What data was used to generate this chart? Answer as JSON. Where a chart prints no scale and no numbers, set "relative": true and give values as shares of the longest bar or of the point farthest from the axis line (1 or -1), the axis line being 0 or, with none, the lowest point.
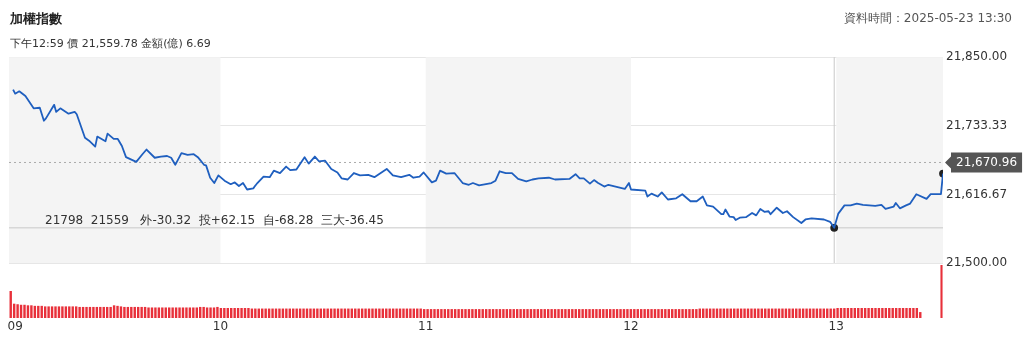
{
  "chart_data": [
    {
      "type": "line",
      "title": "加權指數",
      "subtitle": "下午12:59  價 21,559.78  金額(億) 6.69",
      "annotations": [
        "資料時間：2025-05-23 13:30",
        "21798  21559   外-30.32  投+62.15  自-68.28  三大-36.45"
      ],
      "xlim": [
        8.97,
        13.52
      ],
      "xticks": [
        {
          "value": 9,
          "label": "09"
        },
        {
          "value": 10,
          "label": "10"
        },
        {
          "value": 11,
          "label": "11"
        },
        {
          "value": 12,
          "label": "12"
        },
        {
          "value": 13,
          "label": "13"
        }
      ],
      "ylim": [
        21500,
        21850
      ],
      "yticks": [
        {
          "value": 21500,
          "label": "21,500.00"
        },
        {
          "value": 21616.67,
          "label": "21,616.67"
        },
        {
          "value": 21733.33,
          "label": "21,733.33"
        },
        {
          "value": 21850,
          "label": "21,850.00"
        }
      ],
      "grid": "y",
      "legend": false,
      "bands": [
        {
          "axis": "x",
          "from": 8.97,
          "to": 10,
          "color": "#f4f4f4"
        },
        {
          "axis": "x",
          "from": 11,
          "to": 12,
          "color": "#f4f4f4"
        },
        {
          "axis": "x",
          "from": 13,
          "to": 13.52,
          "color": "#f4f4f4"
        }
      ],
      "ref_lines": [
        {
          "axis": "y",
          "value": 21670.96,
          "label": "21,670.96",
          "line_style": "dotted",
          "color": "#aaaaaa"
        },
        {
          "axis": "x",
          "value": 12.99,
          "color": "#c8c8c8"
        },
        {
          "axis": "y",
          "value": 21559.78,
          "color": "#c8c8c8"
        }
      ],
      "series": [
        {
          "type": "line",
          "color": "#1f5fbf",
          "marker": "none",
          "x": [
            8.99,
            9.0,
            9.02,
            9.05,
            9.09,
            9.12,
            9.14,
            9.15,
            9.19,
            9.2,
            9.22,
            9.26,
            9.29,
            9.3,
            9.34,
            9.36,
            9.39,
            9.4,
            9.44,
            9.45,
            9.48,
            9.5,
            9.52,
            9.54,
            9.59,
            9.62,
            9.64,
            9.68,
            9.71,
            9.74,
            9.76,
            9.78,
            9.81,
            9.84,
            9.87,
            9.89,
            9.92,
            9.93,
            9.95,
            9.97,
            9.99,
            10.02,
            10.05,
            10.07,
            10.09,
            10.11,
            10.13,
            10.16,
            10.18,
            10.21,
            10.24,
            10.26,
            10.29,
            10.32,
            10.34,
            10.37,
            10.41,
            10.43,
            10.46,
            10.48,
            10.51,
            10.54,
            10.57,
            10.59,
            10.62,
            10.65,
            10.68,
            10.72,
            10.75,
            10.81,
            10.84,
            10.88,
            10.92,
            10.94,
            10.97,
            10.99,
            11.03,
            11.05,
            11.07,
            11.1,
            11.14,
            11.18,
            11.21,
            11.23,
            11.26,
            11.32,
            11.34,
            11.36,
            11.39,
            11.42,
            11.45,
            11.49,
            11.52,
            11.55,
            11.6,
            11.63,
            11.7,
            11.73,
            11.75,
            11.77,
            11.8,
            11.82,
            11.84,
            11.87,
            11.89,
            11.97,
            11.99,
            12.0,
            12.07,
            12.08,
            12.1,
            12.13,
            12.15,
            12.18,
            12.22,
            12.25,
            12.29,
            12.32,
            12.35,
            12.37,
            12.4,
            12.44,
            12.45,
            12.46,
            12.48,
            12.5,
            12.51,
            12.53,
            12.56,
            12.59,
            12.61,
            12.63,
            12.65,
            12.67,
            12.68,
            12.71,
            12.74,
            12.76,
            12.79,
            12.83,
            12.85,
            12.88,
            12.94,
            12.97,
            12.99,
            13.01,
            13.04,
            13.07,
            13.1,
            13.13,
            13.19,
            13.22,
            13.24,
            13.28,
            13.29,
            13.31,
            13.34,
            13.36,
            13.39,
            13.44,
            13.46,
            13.51,
            13.52
          ],
          "values": [
            21795,
            21788,
            21792,
            21784,
            21763,
            21764,
            21742,
            21746,
            21769,
            21757,
            21763,
            21754,
            21757,
            21753,
            21713,
            21708,
            21698,
            21715,
            21707,
            21720,
            21711,
            21711,
            21699,
            21680,
            21672,
            21685,
            21693,
            21679,
            21681,
            21682,
            21679,
            21667,
            21687,
            21684,
            21685,
            21680,
            21667,
            21666,
            21645,
            21636,
            21649,
            21640,
            21634,
            21637,
            21631,
            21636,
            21625,
            21627,
            21636,
            21647,
            21646,
            21657,
            21653,
            21664,
            21658,
            21659,
            21680,
            21669,
            21681,
            21673,
            21674,
            21660,
            21654,
            21644,
            21642,
            21653,
            21649,
            21650,
            21646,
            21660,
            21649,
            21646,
            21650,
            21645,
            21647,
            21654,
            21637,
            21640,
            21657,
            21652,
            21653,
            21636,
            21633,
            21636,
            21632,
            21636,
            21640,
            21656,
            21653,
            21653,
            21643,
            21639,
            21642,
            21644,
            21645,
            21642,
            21643,
            21651,
            21644,
            21644,
            21635,
            21641,
            21636,
            21630,
            21633,
            21626,
            21636,
            21625,
            21623,
            21613,
            21618,
            21613,
            21620,
            21608,
            21610,
            21617,
            21605,
            21605,
            21613,
            21598,
            21596,
            21583,
            21583,
            21591,
            21579,
            21578,
            21573,
            21577,
            21578,
            21585,
            21581,
            21592,
            21587,
            21588,
            21583,
            21594,
            21585,
            21588,
            21578,
            21568,
            21574,
            21576,
            21574,
            21570,
            21559.78,
            21584,
            21598,
            21598,
            21601,
            21599,
            21597,
            21599,
            21592,
            21596,
            21602,
            21593,
            21598,
            21601,
            21617,
            21609,
            21617,
            21617,
            21652
          ]
        },
        {
          "type": "scatter",
          "color": "#222222",
          "marker": "circle",
          "x": [
            12.99,
            13.52
          ],
          "values": [
            21559.78,
            21652
          ]
        }
      ]
    },
    {
      "type": "bar",
      "relative": true,
      "legend": false,
      "color": "#e8303a",
      "categories": [
        null,
        null,
        null,
        null,
        null,
        null,
        null,
        null,
        null,
        null,
        null,
        null,
        null,
        null,
        null,
        null,
        null,
        null,
        null,
        null,
        null,
        null,
        null,
        null,
        null,
        null,
        null,
        null,
        null,
        null,
        null,
        null,
        null,
        null,
        null,
        null,
        null,
        null,
        null,
        null,
        null,
        null,
        null,
        null,
        null,
        null,
        null,
        null,
        null,
        null,
        null,
        null,
        null,
        null,
        null,
        null,
        null,
        null,
        null,
        null,
        null,
        null,
        null,
        null,
        null,
        null,
        null,
        null,
        null,
        null,
        null,
        null,
        null,
        null,
        null,
        null,
        null,
        null,
        null,
        null,
        null,
        null,
        null,
        null,
        null,
        null,
        null,
        null,
        null,
        null,
        null,
        null,
        null,
        null,
        null,
        null,
        null,
        null,
        null,
        null,
        null,
        null,
        null,
        null,
        null,
        null,
        null,
        null,
        null,
        null,
        null,
        null,
        null,
        null,
        null,
        null,
        null,
        null,
        null,
        null,
        null,
        null,
        null,
        null,
        null,
        null,
        null,
        null,
        null,
        null,
        null,
        null,
        null,
        null,
        null,
        null,
        null,
        null,
        null,
        null,
        null,
        null,
        null,
        null,
        null,
        null,
        null,
        null,
        null,
        null,
        null,
        null,
        null,
        null,
        null,
        null,
        null,
        null,
        null,
        null,
        null,
        null,
        null,
        null,
        null,
        null,
        null,
        null,
        null,
        null,
        null,
        null,
        null,
        null,
        null,
        null,
        null,
        null,
        null,
        null,
        null,
        null,
        null,
        null,
        null,
        null,
        null,
        null,
        null,
        null,
        null,
        null,
        null,
        null,
        null,
        null,
        null,
        null,
        null,
        null,
        null,
        null,
        null,
        null,
        null,
        null,
        null,
        null,
        null,
        null,
        null,
        null,
        null,
        null,
        null,
        null,
        null,
        null,
        null,
        null,
        null,
        null,
        null,
        null,
        null,
        null,
        null,
        null,
        null,
        null,
        null,
        null,
        null,
        null,
        null,
        null,
        null,
        null,
        null,
        null,
        null,
        null,
        null,
        null,
        null,
        null,
        null,
        null,
        null,
        null,
        null,
        null,
        null,
        null,
        null,
        null,
        null,
        null,
        null,
        null,
        null,
        null,
        null,
        null,
        null
      ],
      "values": [
        1,
        0.53,
        0.51,
        0.49,
        0.49,
        0.47,
        0.47,
        0.45,
        0.45,
        0.45,
        0.43,
        0.43,
        0.43,
        0.43,
        0.43,
        0.43,
        0.43,
        0.43,
        0.43,
        0.43,
        0.41,
        0.41,
        0.41,
        0.41,
        0.41,
        0.41,
        0.41,
        0.41,
        0.41,
        0.41,
        0.47,
        0.45,
        0.43,
        0.41,
        0.41,
        0.41,
        0.41,
        0.41,
        0.41,
        0.41,
        0.39,
        0.39,
        0.39,
        0.39,
        0.39,
        0.39,
        0.39,
        0.39,
        0.39,
        0.39,
        0.39,
        0.39,
        0.39,
        0.39,
        0.39,
        0.41,
        0.41,
        0.39,
        0.39,
        0.39,
        0.41,
        0.37,
        0.37,
        0.37,
        0.37,
        0.37,
        0.37,
        0.37,
        0.37,
        0.37,
        0.35,
        0.35,
        0.35,
        0.35,
        0.35,
        0.35,
        0.35,
        0.35,
        0.35,
        0.35,
        0.35,
        0.35,
        0.35,
        0.35,
        0.35,
        0.35,
        0.35,
        0.35,
        0.35,
        0.35,
        0.35,
        0.35,
        0.35,
        0.35,
        0.35,
        0.35,
        0.35,
        0.35,
        0.35,
        0.35,
        0.35,
        0.35,
        0.35,
        0.35,
        0.35,
        0.35,
        0.35,
        0.35,
        0.35,
        0.35,
        0.35,
        0.35,
        0.35,
        0.35,
        0.35,
        0.35,
        0.35,
        0.35,
        0.35,
        0.35,
        0.33,
        0.33,
        0.33,
        0.33,
        0.33,
        0.33,
        0.33,
        0.33,
        0.33,
        0.33,
        0.33,
        0.33,
        0.33,
        0.33,
        0.33,
        0.33,
        0.33,
        0.33,
        0.33,
        0.33,
        0.33,
        0.33,
        0.33,
        0.33,
        0.33,
        0.33,
        0.33,
        0.33,
        0.33,
        0.33,
        0.33,
        0.33,
        0.33,
        0.33,
        0.33,
        0.33,
        0.33,
        0.33,
        0.33,
        0.33,
        0.33,
        0.33,
        0.33,
        0.33,
        0.33,
        0.33,
        0.33,
        0.33,
        0.33,
        0.33,
        0.33,
        0.33,
        0.33,
        0.33,
        0.33,
        0.33,
        0.33,
        0.33,
        0.33,
        0.33,
        0.33,
        0.33,
        0.33,
        0.33,
        0.33,
        0.33,
        0.33,
        0.33,
        0.33,
        0.33,
        0.33,
        0.33,
        0.33,
        0.33,
        0.33,
        0.33,
        0.33,
        0.33,
        0.33,
        0.33,
        0.35,
        0.35,
        0.35,
        0.35,
        0.35,
        0.35,
        0.35,
        0.35,
        0.35,
        0.35,
        0.35,
        0.35,
        0.35,
        0.35,
        0.35,
        0.35,
        0.35,
        0.35,
        0.35,
        0.35,
        0.35,
        0.35,
        0.35,
        0.35,
        0.35,
        0.35,
        0.35,
        0.35,
        0.35,
        0.35,
        0.35,
        0.35,
        0.35,
        0.35,
        0.35,
        0.35,
        0.35,
        0.35,
        0.35,
        0.35,
        0.37,
        0.37,
        0.37,
        0.37,
        0.37,
        0.37,
        0.37,
        0.37,
        0.37,
        0.37,
        0.37,
        0.37,
        0.37,
        0.37,
        0.37,
        0.37,
        0.37,
        0.37,
        0.37,
        0.37,
        0.37,
        0.37,
        0.37,
        0.37,
        0.22
      ]
    },
    {
      "type": "bar",
      "relative": true,
      "legend": false,
      "color": "#e8303a",
      "categories": [
        null
      ],
      "values": [
        1
      ]
    }
  ]
}
